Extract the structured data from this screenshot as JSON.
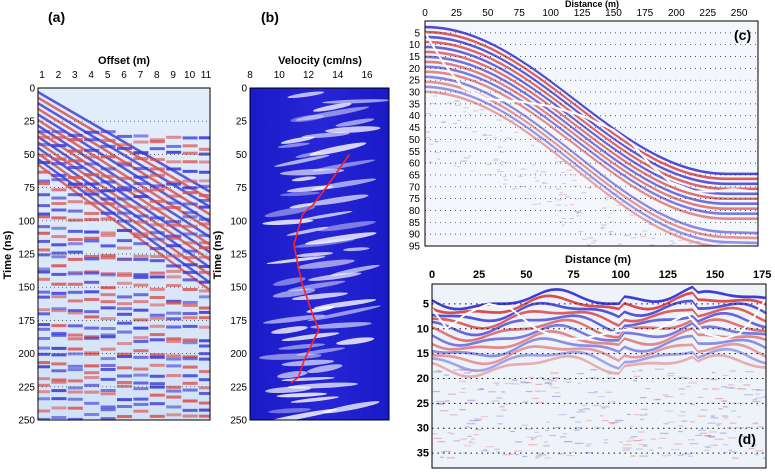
{
  "figure": {
    "panel_a": {
      "label": "(a)",
      "xlabel": "Offset (m)",
      "ylabel": "Time (ns)",
      "xticks": [
        "1",
        "2",
        "3",
        "4",
        "5",
        "6",
        "7",
        "8",
        "9",
        "10",
        "11"
      ],
      "yticks": [
        "0",
        "25",
        "50",
        "75",
        "100",
        "125",
        "150",
        "175",
        "200",
        "225",
        "250"
      ]
    },
    "panel_b": {
      "label": "(b)",
      "xlabel": "Velocity (cm/ns)",
      "ylabel": "Time (ns)",
      "xticks": [
        "8",
        "10",
        "12",
        "14",
        "16"
      ],
      "yticks": [
        "0",
        "25",
        "50",
        "75",
        "100",
        "125",
        "150",
        "175",
        "200",
        "225",
        "250"
      ]
    },
    "panel_c": {
      "label": "(c)",
      "xlabel": "Distance (m)",
      "xticks": [
        "0",
        "25",
        "50",
        "75",
        "100",
        "125",
        "150",
        "175",
        "200",
        "225",
        "250"
      ],
      "yticks": [
        "5",
        "10",
        "15",
        "20",
        "25",
        "30",
        "35",
        "40",
        "45",
        "50",
        "55",
        "60",
        "65",
        "70",
        "75",
        "80",
        "85",
        "90",
        "95"
      ]
    },
    "panel_d": {
      "label": "(d)",
      "xlabel": "Distance (m)",
      "xticks": [
        "0",
        "25",
        "50",
        "75",
        "100",
        "125",
        "150",
        "175"
      ],
      "yticks": [
        "5",
        "10",
        "15",
        "20",
        "25",
        "30",
        "35"
      ]
    }
  },
  "chart_data": [
    {
      "type": "heatmap",
      "title": "(a)",
      "xlabel": "Offset (m)",
      "ylabel": "Time (ns)",
      "xlim": [
        1,
        11
      ],
      "ylim": [
        0,
        250
      ],
      "colormap": [
        "#2a2ad0",
        "#dfeaf8",
        "#d03030"
      ]
    },
    {
      "type": "heatmap",
      "title": "(b)",
      "xlabel": "Velocity (cm/ns)",
      "ylabel": "Time (ns)",
      "xlim": [
        8,
        17.5
      ],
      "ylim": [
        0,
        250
      ],
      "series": [
        {
          "type": "line",
          "color": "#ff2020",
          "x": [
            14.8,
            13.2,
            12.3,
            11.6,
            11.0,
            11.5,
            12.2,
            12.7,
            11.7,
            11.3,
            10.8
          ],
          "y": [
            50,
            75,
            88,
            95,
            118,
            145,
            168,
            182,
            205,
            218,
            222
          ]
        }
      ]
    },
    {
      "type": "heatmap",
      "title": "(c)",
      "xlabel": "Distance (m)",
      "xlim": [
        0,
        265
      ],
      "ylim": [
        0,
        95
      ],
      "series": [
        {
          "type": "line",
          "color": "#ffffff",
          "x": [
            0,
            15,
            30,
            50,
            75,
            100,
            125,
            150,
            165,
            180,
            195,
            215,
            230,
            245,
            262
          ],
          "y": [
            5,
            18,
            28,
            33,
            34,
            36,
            40,
            46,
            52,
            61,
            68,
            72,
            72,
            71,
            72
          ]
        }
      ]
    },
    {
      "type": "heatmap",
      "title": "(d)",
      "xlabel": "Distance (m)",
      "xlim": [
        0,
        177
      ],
      "ylim": [
        1,
        38
      ],
      "series": [
        {
          "type": "line",
          "color": "#ffffff",
          "x": [
            0,
            8,
            18,
            30,
            42,
            55,
            68,
            80,
            92,
            105,
            115,
            125,
            135,
            145,
            155,
            163,
            170,
            177
          ],
          "y": [
            6,
            10,
            7,
            5,
            6,
            10,
            12,
            12,
            11,
            10,
            11,
            9,
            7,
            11,
            12,
            11,
            8,
            4
          ]
        }
      ]
    }
  ]
}
